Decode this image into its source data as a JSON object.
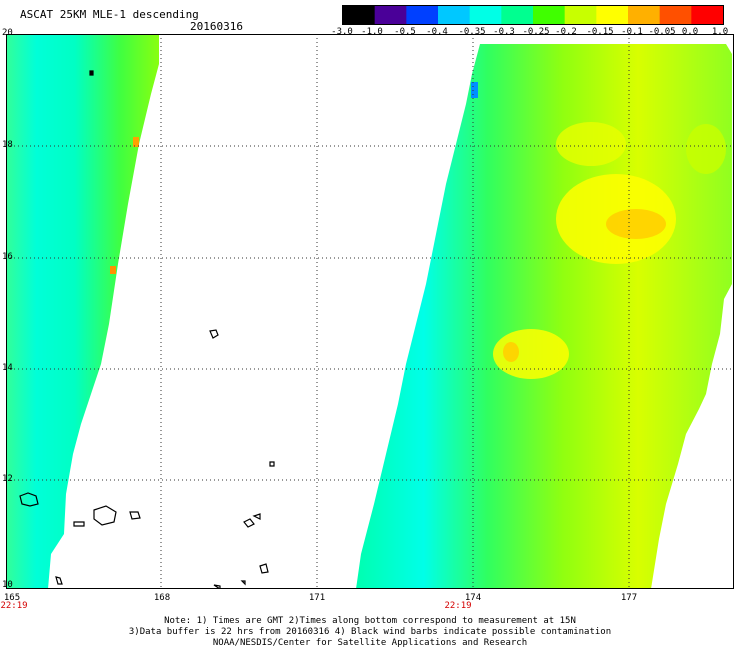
{
  "header": {
    "title": "ASCAT 25KM MLE-1 descending",
    "date": "20160316"
  },
  "colorbar": {
    "labels": [
      "-3.0",
      "-1.0",
      "-0.5",
      "-0.4",
      "-0.35",
      "-0.3",
      "-0.25",
      "-0.2",
      "-0.15",
      "-0.1",
      "-0.05",
      "0.0",
      "1.0"
    ],
    "colors": [
      "#000000",
      "#4a0098",
      "#0040ff",
      "#00c8ff",
      "#00ffe6",
      "#00ff90",
      "#40ff00",
      "#c8ff00",
      "#ffff00",
      "#ffb000",
      "#ff5000",
      "#ff0000"
    ]
  },
  "map": {
    "lat_labels": [
      "20",
      "18",
      "16",
      "14",
      "12",
      "10"
    ],
    "lon_labels": [
      "165",
      "168",
      "171",
      "174",
      "177"
    ],
    "time_labels": [
      "22:19",
      "22:19"
    ]
  },
  "notes": {
    "line1": "Note: 1) Times are GMT 2)Times along bottom correspond to measurement at 15N",
    "line2": "3)Data buffer is 22 hrs from 20160316 4) Black wind barbs indicate possible contamination",
    "line3": "NOAA/NESDIS/Center for Satellite Applications and Research"
  }
}
